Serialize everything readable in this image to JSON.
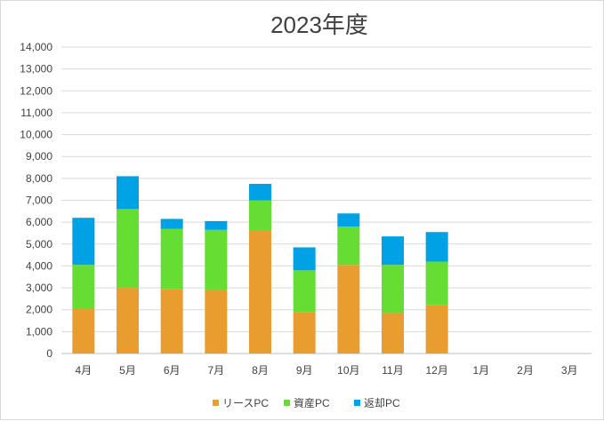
{
  "chart_data": {
    "type": "bar",
    "stacked": true,
    "title": "2023年度",
    "categories": [
      "4月",
      "5月",
      "6月",
      "7月",
      "8月",
      "9月",
      "10月",
      "11月",
      "12月",
      "1月",
      "2月",
      "3月"
    ],
    "series": [
      {
        "name": "リースPC",
        "color": "#E99D2F",
        "values": [
          2050,
          3000,
          2950,
          2900,
          5600,
          1900,
          4050,
          1850,
          2200,
          0,
          0,
          0
        ]
      },
      {
        "name": "資産PC",
        "color": "#66DD33",
        "values": [
          2000,
          3600,
          2750,
          2750,
          1400,
          1900,
          1750,
          2200,
          2000,
          0,
          0,
          0
        ]
      },
      {
        "name": "返却PC",
        "color": "#00A2E5",
        "values": [
          2150,
          1500,
          450,
          400,
          750,
          1050,
          600,
          1300,
          1350,
          0,
          0,
          0
        ]
      }
    ],
    "ylim": [
      0,
      14000
    ],
    "ytick_step": 1000,
    "ytick_labels": [
      "0",
      "1,000",
      "2,000",
      "3,000",
      "4,000",
      "5,000",
      "6,000",
      "7,000",
      "8,000",
      "9,000",
      "10,000",
      "11,000",
      "12,000",
      "13,000",
      "14,000"
    ],
    "grid": true,
    "legend_position": "bottom"
  }
}
